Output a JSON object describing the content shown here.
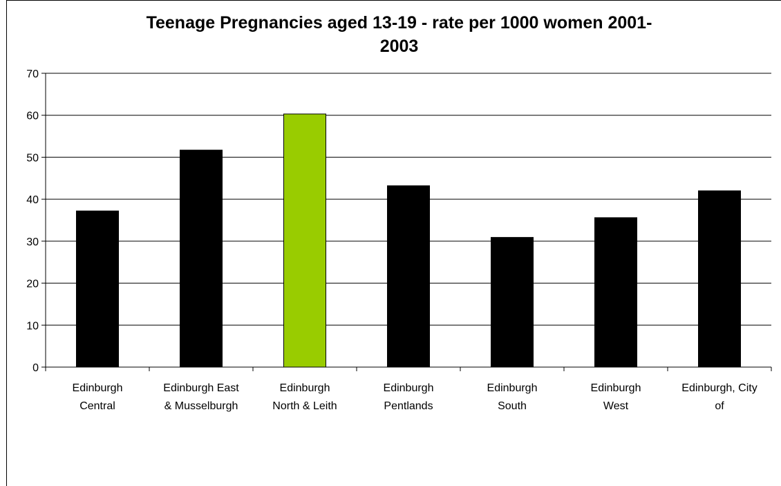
{
  "chart_data": {
    "type": "bar",
    "title": "Teenage Pregnancies aged 13-19 - rate per 1000 women 2001-2003",
    "title_lines": [
      "Teenage Pregnancies aged 13-19 - rate per 1000 women 2001-",
      "2003"
    ],
    "categories": [
      [
        "Edinburgh",
        "Central"
      ],
      [
        "Edinburgh East",
        "& Musselburgh"
      ],
      [
        "Edinburgh",
        "North & Leith"
      ],
      [
        "Edinburgh",
        "Pentlands"
      ],
      [
        "Edinburgh",
        "South"
      ],
      [
        "Edinburgh",
        "West"
      ],
      [
        "Edinburgh, City",
        "of"
      ]
    ],
    "values": [
      37.2,
      51.7,
      60.3,
      43.2,
      30.9,
      35.6,
      42.0
    ],
    "highlight_index": 2,
    "ylim": [
      0,
      70
    ],
    "yticks": [
      0,
      10,
      20,
      30,
      40,
      50,
      60,
      70
    ],
    "grid": true,
    "legend": "none",
    "colors": {
      "bar": "#000000",
      "highlight": "#99cc00",
      "grid": "#000000"
    }
  }
}
